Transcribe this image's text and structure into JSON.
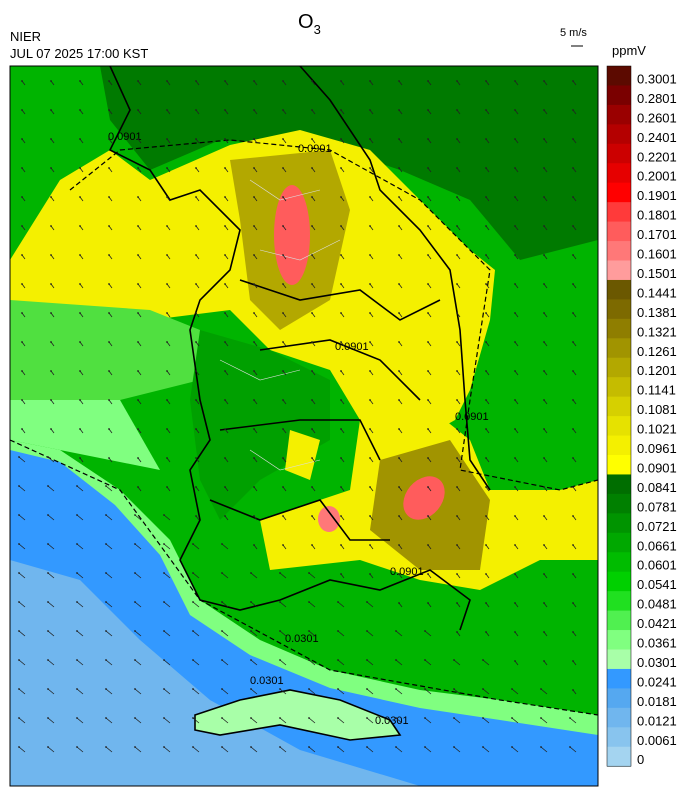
{
  "header": {
    "title": "O",
    "title_subscript": "3",
    "agency": "NIER",
    "datetime": "JUL 07 2025 17:00 KST",
    "wind_scale": "5 m/s",
    "unit": "ppmV"
  },
  "contour_labels": [
    "0.0901",
    "0.0901",
    "0.0901",
    "0.0901",
    "0.0901",
    "0.0301",
    "0.0301",
    "0.0301"
  ],
  "legend": [
    {
      "label": "0.3001",
      "color": "#5c0a00"
    },
    {
      "label": "0.2801",
      "color": "#7a0000"
    },
    {
      "label": "0.2601",
      "color": "#9a0000"
    },
    {
      "label": "0.2401",
      "color": "#b40000"
    },
    {
      "label": "0.2201",
      "color": "#cc0000"
    },
    {
      "label": "0.2001",
      "color": "#e60000"
    },
    {
      "label": "0.1901",
      "color": "#ff0000"
    },
    {
      "label": "0.1801",
      "color": "#ff3a3a"
    },
    {
      "label": "0.1701",
      "color": "#ff5c5c"
    },
    {
      "label": "0.1601",
      "color": "#ff7878"
    },
    {
      "label": "0.1501",
      "color": "#ff9c9c"
    },
    {
      "label": "0.1441",
      "color": "#6b5800"
    },
    {
      "label": "0.1381",
      "color": "#7d6a00"
    },
    {
      "label": "0.1321",
      "color": "#8f7e00"
    },
    {
      "label": "0.1261",
      "color": "#a19400"
    },
    {
      "label": "0.1201",
      "color": "#b3a800"
    },
    {
      "label": "0.1141",
      "color": "#c5bc00"
    },
    {
      "label": "0.1081",
      "color": "#d6d000"
    },
    {
      "label": "0.1021",
      "color": "#e6e200"
    },
    {
      "label": "0.0961",
      "color": "#f4f000"
    },
    {
      "label": "0.0901",
      "color": "#ffff00"
    },
    {
      "label": "0.0841",
      "color": "#006e00"
    },
    {
      "label": "0.0781",
      "color": "#008000"
    },
    {
      "label": "0.0721",
      "color": "#009400"
    },
    {
      "label": "0.0661",
      "color": "#00a800"
    },
    {
      "label": "0.0601",
      "color": "#00bc00"
    },
    {
      "label": "0.0541",
      "color": "#00d000"
    },
    {
      "label": "0.0481",
      "color": "#20e020"
    },
    {
      "label": "0.0421",
      "color": "#50f050"
    },
    {
      "label": "0.0361",
      "color": "#80ff80"
    },
    {
      "label": "0.0301",
      "color": "#a8ffa8"
    },
    {
      "label": "0.0241",
      "color": "#3399ff"
    },
    {
      "label": "0.0181",
      "color": "#55a8f0"
    },
    {
      "label": "0.0121",
      "color": "#70b6ee"
    },
    {
      "label": "0.0061",
      "color": "#88c4ee"
    },
    {
      "label": "0",
      "color": "#a4d4f0"
    }
  ]
}
